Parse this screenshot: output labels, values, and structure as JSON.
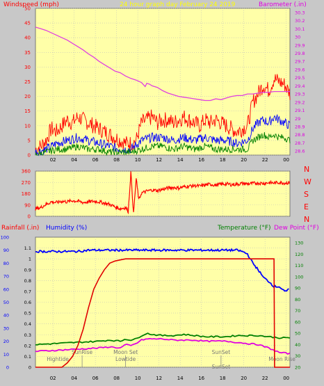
{
  "chart_data": [
    {
      "type": "line",
      "title": "24 hour graph day   February 24 2019",
      "left_label": "Windspeed (mph)",
      "right_label": "Barometer (.in)",
      "x_ticks": [
        "02",
        "04",
        "06",
        "08",
        "10",
        "12",
        "14",
        "16",
        "18",
        "20",
        "22",
        "00"
      ],
      "y_left_ticks": [
        0,
        5,
        10,
        15,
        20,
        25,
        30,
        35,
        40,
        45,
        50
      ],
      "y_right_ticks": [
        "28.6",
        "28.7",
        "28.8",
        "28.9",
        "29",
        "29.1",
        "29.2",
        "29.3",
        "29.4",
        "29.5",
        "29.6",
        "29.7",
        "29.8",
        "29.9",
        "30",
        "30.1",
        "30.2",
        "30.3"
      ],
      "ylim_left": [
        0,
        50
      ],
      "ylim_right": [
        28.55,
        30.35
      ],
      "colors": {
        "barometer": "#e040e0",
        "gust": "#ff0000",
        "avg": "#0000ff",
        "min": "#008000"
      },
      "barometer": [
        [
          0,
          30.12
        ],
        [
          1,
          30.1
        ],
        [
          2,
          30.08
        ],
        [
          3,
          30.05
        ],
        [
          4,
          30.02
        ],
        [
          5,
          29.99
        ],
        [
          6,
          29.96
        ],
        [
          7,
          29.92
        ],
        [
          8,
          29.88
        ],
        [
          9,
          29.84
        ],
        [
          10,
          29.79
        ],
        [
          11,
          29.75
        ],
        [
          12,
          29.7
        ],
        [
          13,
          29.66
        ],
        [
          14,
          29.62
        ],
        [
          15,
          29.58
        ],
        [
          16,
          29.56
        ],
        [
          17,
          29.52
        ],
        [
          18,
          29.49
        ],
        [
          19,
          29.47
        ],
        [
          20,
          29.44
        ],
        [
          20.7,
          29.39
        ],
        [
          21,
          29.43
        ],
        [
          21.5,
          29.42
        ],
        [
          22,
          29.4
        ],
        [
          23,
          29.38
        ],
        [
          24,
          29.34
        ],
        [
          25,
          29.31
        ],
        [
          26,
          29.29
        ],
        [
          27,
          29.27
        ],
        [
          28,
          29.26
        ],
        [
          29,
          29.25
        ],
        [
          30,
          29.24
        ],
        [
          31,
          29.23
        ],
        [
          32,
          29.22
        ],
        [
          33,
          29.22
        ],
        [
          34,
          29.24
        ],
        [
          35,
          29.23
        ],
        [
          36,
          29.25
        ],
        [
          37,
          29.27
        ],
        [
          38,
          29.28
        ],
        [
          39,
          29.28
        ],
        [
          40,
          29.3
        ],
        [
          41,
          29.3
        ],
        [
          42,
          29.31
        ],
        [
          43,
          29.32
        ],
        [
          44,
          29.32
        ],
        [
          45,
          29.33
        ],
        [
          46,
          29.33
        ],
        [
          47,
          29.33
        ],
        [
          48,
          29.33
        ]
      ],
      "wind_gust": [
        [
          0,
          2
        ],
        [
          1,
          3
        ],
        [
          2,
          5
        ],
        [
          3,
          9
        ],
        [
          4,
          8
        ],
        [
          5,
          10
        ],
        [
          6,
          12
        ],
        [
          7,
          11
        ],
        [
          8,
          13
        ],
        [
          9,
          12
        ],
        [
          10,
          11
        ],
        [
          11,
          10
        ],
        [
          12,
          9
        ],
        [
          13,
          8
        ],
        [
          14,
          7
        ],
        [
          15,
          6
        ],
        [
          16,
          5
        ],
        [
          17,
          4
        ],
        [
          18,
          4
        ],
        [
          19,
          5
        ],
        [
          20,
          11
        ],
        [
          21,
          12
        ],
        [
          22,
          13
        ],
        [
          23,
          11
        ],
        [
          24,
          12
        ],
        [
          25,
          12
        ],
        [
          26,
          11
        ],
        [
          27,
          12
        ],
        [
          28,
          13
        ],
        [
          29,
          12
        ],
        [
          30,
          11
        ],
        [
          31,
          10
        ],
        [
          32,
          12
        ],
        [
          33,
          11
        ],
        [
          34,
          12
        ],
        [
          35,
          11
        ],
        [
          36,
          10
        ],
        [
          37,
          9
        ],
        [
          38,
          8
        ],
        [
          39,
          9
        ],
        [
          40,
          10
        ],
        [
          41,
          18
        ],
        [
          42,
          21
        ],
        [
          43,
          24
        ],
        [
          44,
          22
        ],
        [
          45,
          26
        ],
        [
          46,
          25
        ],
        [
          47,
          24
        ],
        [
          48,
          21
        ]
      ],
      "wind_avg": [
        [
          0,
          1
        ],
        [
          2,
          2
        ],
        [
          4,
          4
        ],
        [
          6,
          5
        ],
        [
          8,
          6
        ],
        [
          10,
          5
        ],
        [
          12,
          4
        ],
        [
          14,
          3
        ],
        [
          16,
          2
        ],
        [
          18,
          2
        ],
        [
          20,
          5
        ],
        [
          22,
          6
        ],
        [
          24,
          6
        ],
        [
          26,
          5
        ],
        [
          28,
          6
        ],
        [
          30,
          5
        ],
        [
          32,
          6
        ],
        [
          34,
          5
        ],
        [
          36,
          5
        ],
        [
          38,
          4
        ],
        [
          40,
          5
        ],
        [
          41,
          9
        ],
        [
          42,
          11
        ],
        [
          43,
          12
        ],
        [
          44,
          11
        ],
        [
          45,
          13
        ],
        [
          46,
          12
        ],
        [
          47,
          11
        ],
        [
          48,
          10
        ]
      ],
      "wind_min": [
        [
          0,
          0
        ],
        [
          2,
          1
        ],
        [
          4,
          2
        ],
        [
          6,
          2
        ],
        [
          8,
          3
        ],
        [
          10,
          2
        ],
        [
          12,
          2
        ],
        [
          14,
          1
        ],
        [
          16,
          1
        ],
        [
          18,
          1
        ],
        [
          20,
          2
        ],
        [
          22,
          3
        ],
        [
          24,
          3
        ],
        [
          26,
          2
        ],
        [
          28,
          3
        ],
        [
          30,
          2
        ],
        [
          32,
          3
        ],
        [
          34,
          2
        ],
        [
          36,
          2
        ],
        [
          38,
          2
        ],
        [
          40,
          2
        ],
        [
          41,
          5
        ],
        [
          42,
          6
        ],
        [
          43,
          7
        ],
        [
          44,
          6
        ],
        [
          45,
          7
        ],
        [
          46,
          6
        ],
        [
          47,
          6
        ],
        [
          48,
          5
        ]
      ]
    },
    {
      "type": "line",
      "left_ticks": [
        0,
        90,
        180,
        270,
        360
      ],
      "right_labels": [
        "N",
        "W",
        "S",
        "E",
        "N"
      ],
      "ylim": [
        0,
        360
      ],
      "color": "#ff0000",
      "direction": [
        [
          0,
          60
        ],
        [
          1,
          70
        ],
        [
          2,
          95
        ],
        [
          3,
          115
        ],
        [
          4,
          110
        ],
        [
          5,
          120
        ],
        [
          6,
          115
        ],
        [
          7,
          125
        ],
        [
          8,
          120
        ],
        [
          9,
          110
        ],
        [
          10,
          115
        ],
        [
          11,
          120
        ],
        [
          12,
          115
        ],
        [
          13,
          105
        ],
        [
          14,
          95
        ],
        [
          15,
          75
        ],
        [
          16,
          60
        ],
        [
          17,
          70
        ],
        [
          17.5,
          40
        ],
        [
          18,
          350
        ],
        [
          18.5,
          20
        ],
        [
          19,
          300
        ],
        [
          19.5,
          130
        ],
        [
          20,
          185
        ],
        [
          21,
          200
        ],
        [
          22,
          210
        ],
        [
          23,
          205
        ],
        [
          24,
          215
        ],
        [
          25,
          225
        ],
        [
          26,
          230
        ],
        [
          27,
          225
        ],
        [
          28,
          235
        ],
        [
          29,
          240
        ],
        [
          30,
          245
        ],
        [
          31,
          240
        ],
        [
          32,
          250
        ],
        [
          33,
          255
        ],
        [
          34,
          248
        ],
        [
          35,
          255
        ],
        [
          36,
          258
        ],
        [
          37,
          252
        ],
        [
          38,
          255
        ],
        [
          39,
          262
        ],
        [
          40,
          258
        ],
        [
          41,
          262
        ],
        [
          42,
          265
        ],
        [
          43,
          262
        ],
        [
          44,
          268
        ],
        [
          45,
          265
        ],
        [
          46,
          270
        ],
        [
          47,
          265
        ],
        [
          48,
          268
        ]
      ]
    },
    {
      "type": "line",
      "labels": {
        "rain": "Rainfall (.in)",
        "hum": "Humidity (%)",
        "temp": "Temperature (°F)",
        "dew": "Dew Point (°F)"
      },
      "left_ticks": [
        0,
        10,
        20,
        30,
        40,
        50,
        60,
        70,
        80,
        90,
        100
      ],
      "rain_ticks": [
        "0",
        "0.1",
        "0.2",
        "0.3",
        "0.4",
        "0.5",
        "0.6",
        "0.7",
        "0.8",
        "0.9",
        "1",
        "1.1"
      ],
      "right_ticks": [
        20,
        30,
        40,
        50,
        60,
        70,
        80,
        90,
        100,
        110,
        120,
        130
      ],
      "ylim_rain": [
        0,
        1.2
      ],
      "ylim_temp": [
        20,
        135
      ],
      "colors": {
        "rain": "#e00000",
        "hum": "#0000ff",
        "temp": "#008000",
        "dew": "#e000e0"
      },
      "rain": [
        [
          0,
          0
        ],
        [
          5,
          0
        ],
        [
          6,
          0.04
        ],
        [
          7,
          0.1
        ],
        [
          8,
          0.2
        ],
        [
          9,
          0.35
        ],
        [
          10,
          0.55
        ],
        [
          11,
          0.72
        ],
        [
          12,
          0.82
        ],
        [
          13,
          0.9
        ],
        [
          14,
          0.96
        ],
        [
          15,
          0.98
        ],
        [
          16,
          0.99
        ],
        [
          17,
          1.0
        ],
        [
          34,
          1.0
        ],
        [
          44,
          1.0
        ],
        [
          45,
          1.0
        ],
        [
          45.1,
          0
        ],
        [
          48,
          0
        ]
      ],
      "humidity": [
        [
          0,
          89
        ],
        [
          4,
          89
        ],
        [
          8,
          89
        ],
        [
          10,
          90
        ],
        [
          16,
          90
        ],
        [
          20,
          90
        ],
        [
          26,
          90
        ],
        [
          32,
          90
        ],
        [
          35,
          90
        ],
        [
          38,
          90
        ],
        [
          39,
          89
        ],
        [
          40,
          87
        ],
        [
          41,
          80
        ],
        [
          42,
          75
        ],
        [
          43,
          69
        ],
        [
          44,
          66
        ],
        [
          45,
          62
        ],
        [
          46,
          62
        ],
        [
          47,
          58
        ],
        [
          48,
          60
        ]
      ],
      "temperature": [
        [
          0,
          40
        ],
        [
          4,
          41
        ],
        [
          8,
          42
        ],
        [
          12,
          43
        ],
        [
          14,
          44
        ],
        [
          16,
          43
        ],
        [
          17,
          45
        ],
        [
          18,
          44
        ],
        [
          19,
          45
        ],
        [
          20,
          48
        ],
        [
          21,
          50
        ],
        [
          22,
          49
        ],
        [
          24,
          48
        ],
        [
          26,
          48
        ],
        [
          28,
          49
        ],
        [
          30,
          48
        ],
        [
          32,
          47
        ],
        [
          34,
          47
        ],
        [
          36,
          47
        ],
        [
          38,
          48
        ],
        [
          40,
          48
        ],
        [
          42,
          48
        ],
        [
          44,
          47
        ],
        [
          46,
          46
        ],
        [
          48,
          46
        ]
      ],
      "dewpoint": [
        [
          0,
          34
        ],
        [
          4,
          35
        ],
        [
          8,
          36
        ],
        [
          12,
          37
        ],
        [
          14,
          38
        ],
        [
          16,
          37
        ],
        [
          17,
          40
        ],
        [
          18,
          39
        ],
        [
          19,
          41
        ],
        [
          20,
          44
        ],
        [
          21,
          45
        ],
        [
          22,
          45
        ],
        [
          24,
          45
        ],
        [
          26,
          44
        ],
        [
          28,
          44
        ],
        [
          30,
          44
        ],
        [
          32,
          43
        ],
        [
          34,
          43
        ],
        [
          36,
          43
        ],
        [
          38,
          42
        ],
        [
          40,
          41
        ],
        [
          42,
          40
        ],
        [
          44,
          37
        ],
        [
          46,
          33
        ],
        [
          48,
          32
        ]
      ],
      "events": [
        {
          "label": "Hightide",
          "x": 4.2,
          "row": 0
        },
        {
          "label": "SunRise",
          "x": 8.8,
          "row": 1
        },
        {
          "label": "Lowtide",
          "x": 17.0,
          "row": 0
        },
        {
          "label": "Moon Set",
          "x": 17.0,
          "row": 1
        },
        {
          "label": "SunSet",
          "x": 35.0,
          "row": 1
        },
        {
          "label": "SunSet",
          "x": 35.0,
          "row": 2
        },
        {
          "label": "Moon Rise",
          "x": 46.5,
          "row": 0
        }
      ]
    }
  ]
}
